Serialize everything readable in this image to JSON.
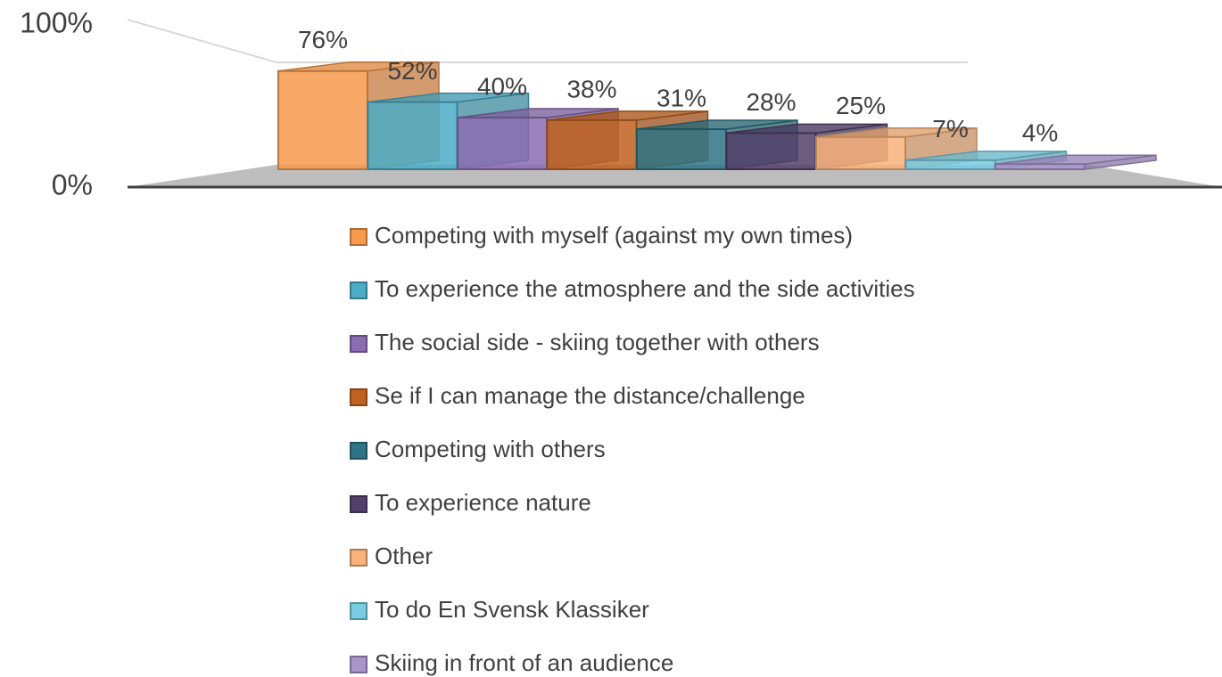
{
  "chart_data": {
    "type": "bar",
    "series": [
      {
        "name": "Competing with myself (against my own times)",
        "color": "#f79a4c",
        "values": [
          76
        ],
        "value_labels": [
          "76%"
        ]
      },
      {
        "name": "To experience the atmosphere and the side activities",
        "color": "#4bacc6",
        "values": [
          52
        ],
        "value_labels": [
          "52%"
        ]
      },
      {
        "name": "The social side - skiing together with others",
        "color": "#8a6cb0",
        "values": [
          40
        ],
        "value_labels": [
          "40%"
        ]
      },
      {
        "name": "Se if I can manage the distance/challenge",
        "color": "#c0621e",
        "values": [
          38
        ],
        "value_labels": [
          "38%"
        ]
      },
      {
        "name": "Competing with others",
        "color": "#2f7384",
        "values": [
          31
        ],
        "value_labels": [
          "31%"
        ]
      },
      {
        "name": "To experience nature",
        "color": "#51406a",
        "values": [
          28
        ],
        "value_labels": [
          "28%"
        ]
      },
      {
        "name": "Other",
        "color": "#f9b27a",
        "values": [
          25
        ],
        "value_labels": [
          "25%"
        ]
      },
      {
        "name": "To do En Svensk Klassiker",
        "color": "#78cde3",
        "values": [
          7
        ],
        "value_labels": [
          "7%"
        ]
      },
      {
        "name": "Skiing in front of an audience",
        "color": "#a895cc",
        "values": [
          4
        ],
        "value_labels": [
          "4%"
        ]
      }
    ],
    "ylim": [
      0,
      100
    ],
    "yticks": [
      {
        "value": 0,
        "label": "0%"
      },
      {
        "value": 100,
        "label": "100%"
      }
    ],
    "grid": true
  }
}
